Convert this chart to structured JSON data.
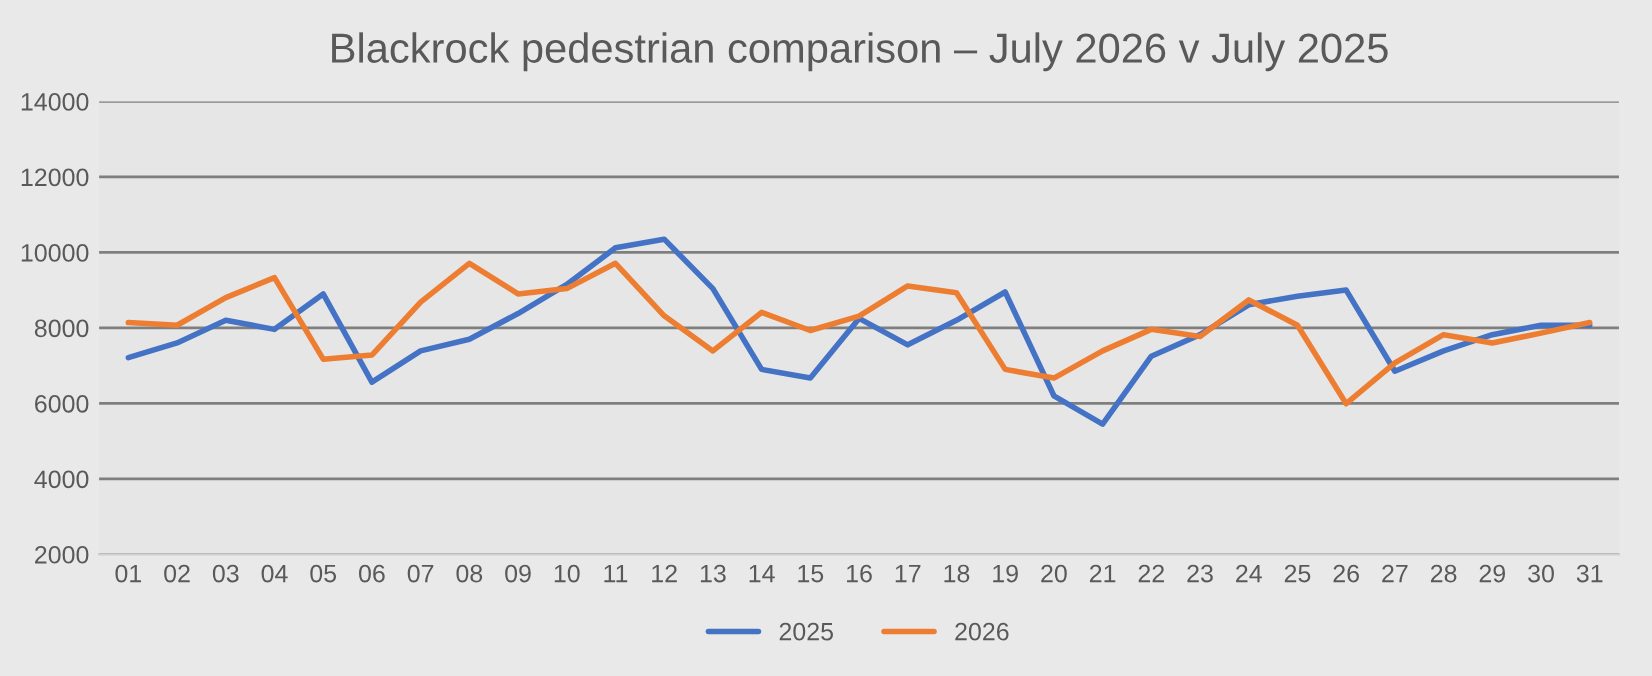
{
  "chart_data": {
    "type": "line",
    "title": "Blackrock pedestrian comparison – July 2026 v July 2025",
    "categories": [
      "01",
      "02",
      "03",
      "04",
      "05",
      "06",
      "07",
      "08",
      "09",
      "10",
      "11",
      "12",
      "13",
      "14",
      "15",
      "16",
      "17",
      "18",
      "19",
      "20",
      "21",
      "22",
      "23",
      "24",
      "25",
      "26",
      "27",
      "28",
      "29",
      "30",
      "31"
    ],
    "series": [
      {
        "name": "2025",
        "color": "#4472c4",
        "values": [
          7210,
          7600,
          8200,
          7960,
          8900,
          6560,
          7390,
          7700,
          8380,
          9150,
          10120,
          10350,
          9040,
          6900,
          6670,
          8250,
          7550,
          8200,
          8950,
          6200,
          5450,
          7250,
          7820,
          8610,
          8840,
          9000,
          6850,
          7390,
          7820,
          8070,
          8070
        ]
      },
      {
        "name": "2026",
        "color": "#ed7d31",
        "values": [
          8140,
          8070,
          8800,
          9330,
          7170,
          7280,
          8680,
          9710,
          8900,
          9040,
          9710,
          8320,
          7390,
          8410,
          7930,
          8310,
          9110,
          8930,
          6900,
          6670,
          7390,
          7960,
          7770,
          8740,
          8070,
          5990,
          7070,
          7820,
          7600,
          7860,
          8140
        ]
      }
    ],
    "ylim": [
      2000,
      14000
    ],
    "yticks": [
      2000,
      4000,
      6000,
      8000,
      10000,
      12000,
      14000
    ],
    "grid": "y",
    "legend": "bottom",
    "marker": "none",
    "line_style": "solid"
  }
}
